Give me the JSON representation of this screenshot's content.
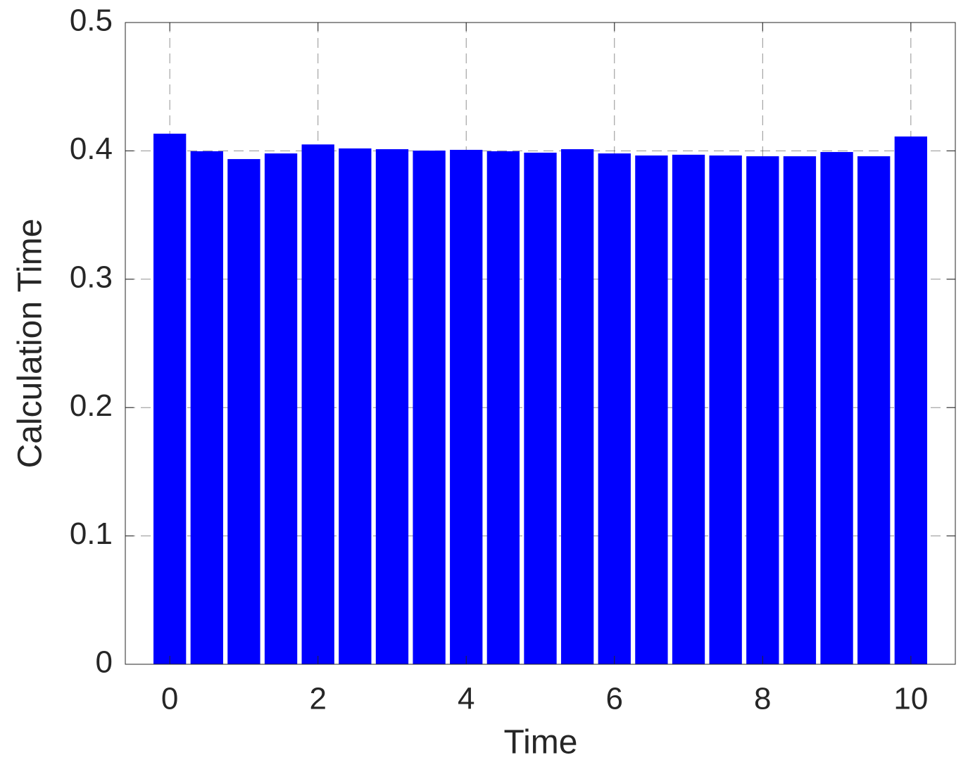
{
  "chart_data": {
    "type": "bar",
    "x_label": "Time",
    "y_label": "Calculation Time",
    "x": [
      0,
      0.5,
      1,
      1.5,
      2,
      2.5,
      3,
      3.5,
      4,
      4.5,
      5,
      5.5,
      6,
      6.5,
      7,
      7.5,
      8,
      8.5,
      9,
      9.5,
      10
    ],
    "values": [
      0.4134,
      0.3997,
      0.3936,
      0.398,
      0.405,
      0.4019,
      0.4013,
      0.4002,
      0.4008,
      0.3997,
      0.3986,
      0.4013,
      0.398,
      0.3964,
      0.397,
      0.3964,
      0.3958,
      0.3958,
      0.3991,
      0.3958,
      0.4112
    ],
    "color": "#0000ff",
    "xlim": [
      -0.6,
      10.6
    ],
    "xticks": [
      0,
      2,
      4,
      6,
      8,
      10
    ],
    "ylim": [
      0,
      0.5
    ],
    "yticks": [
      0,
      0.1,
      0.2,
      0.3,
      0.4,
      0.5
    ],
    "grid": true
  }
}
